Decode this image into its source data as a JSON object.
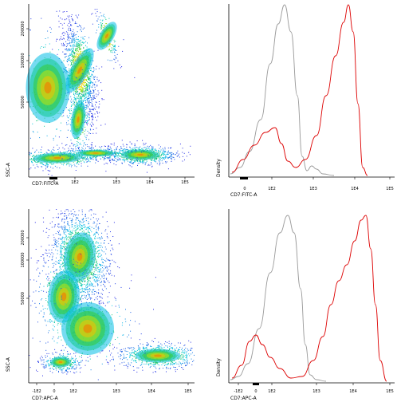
{
  "chart_data": [
    {
      "type": "scatter",
      "panel": "FITC dot plot",
      "xlabel": "CD7:FITC-A",
      "ylabel": "SSC-A",
      "xscale": "biexponential",
      "x_ticks": [
        "0",
        "1E2",
        "1E3",
        "1E4",
        "1E5"
      ],
      "y_ticks": [
        "50000",
        "100000",
        "200000"
      ],
      "coloring": "density (blue-cyan-green-yellow-red)",
      "populations": [
        {
          "x": 170,
          "y": 105000,
          "spread": "large, dense"
        },
        {
          "x": 6000,
          "y": 10000,
          "spread": "elongated, dense"
        },
        {
          "x": 35,
          "y": 10000,
          "spread": "medium"
        },
        {
          "x": 1000,
          "y": 210000,
          "spread": "sparse streak"
        }
      ]
    },
    {
      "type": "line",
      "panel": "FITC histogram",
      "xlabel": "CD7:FITC-A",
      "ylabel": "Density",
      "xscale": "biexponential",
      "x_ticks": [
        "0",
        "1E2",
        "1E3",
        "1E4",
        "1E5"
      ],
      "series": [
        {
          "color": "#9a9a9a",
          "x": [
            "0",
            "80",
            "150",
            "250",
            "400",
            "700"
          ],
          "y": [
            0.02,
            0.35,
            1.0,
            0.35,
            0.03,
            0.05
          ]
        },
        {
          "color": "#dd0000",
          "x": [
            "0",
            "70",
            "200",
            "1000",
            "6000",
            "9000",
            "20000"
          ],
          "y": [
            0.03,
            0.3,
            0.05,
            0.2,
            1.0,
            0.7,
            0.0
          ]
        }
      ]
    },
    {
      "type": "scatter",
      "panel": "APC dot plot",
      "xlabel": "CD7:APC-A",
      "ylabel": "SSC-A",
      "xscale": "biexponential",
      "x_ticks": [
        "-1E2",
        "0",
        "1E2",
        "1E3",
        "1E4",
        "1E5"
      ],
      "y_ticks": [
        "50000",
        "100000",
        "200000"
      ],
      "coloring": "density (blue-cyan-green-yellow-red)",
      "populations": [
        {
          "x": 190,
          "y": 115000,
          "spread": "large, dense"
        },
        {
          "x": 15000,
          "y": 12000,
          "spread": "elongated, dense"
        },
        {
          "x": 40,
          "y": 13000,
          "spread": "medium"
        }
      ]
    },
    {
      "type": "line",
      "panel": "APC histogram",
      "xlabel": "CD7:APC-A",
      "ylabel": "Density",
      "xscale": "biexponential",
      "x_ticks": [
        "-1E2",
        "0",
        "1E2",
        "1E3",
        "1E4",
        "1E5"
      ],
      "series": [
        {
          "color": "#9a9a9a",
          "x": [
            "0",
            "100",
            "200",
            "400",
            "700"
          ],
          "y": [
            0.02,
            0.4,
            1.0,
            0.4,
            0.02
          ]
        },
        {
          "color": "#dd0000",
          "x": [
            "-10",
            "20",
            "100",
            "1000",
            "8000",
            "16000",
            "30000"
          ],
          "y": [
            0.05,
            0.28,
            0.1,
            0.05,
            0.6,
            1.0,
            0.0
          ]
        }
      ]
    }
  ]
}
